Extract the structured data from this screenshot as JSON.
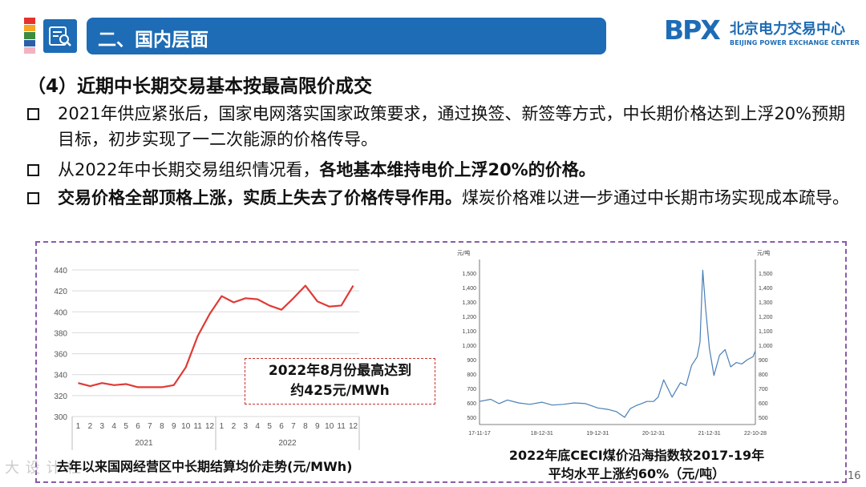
{
  "header": {
    "section_title": "二、国内层面",
    "logo_mark": "BPX",
    "logo_cn": "北京电力交易中心",
    "logo_en": "BEIJING POWER EXCHANGE CENTER",
    "stripe_colors": [
      "#e5322d",
      "#f5a623",
      "#3d8c40",
      "#2b5fa8",
      "#f2b3c0"
    ]
  },
  "subtitle": "（4）近期中长期交易基本按最高限价成交",
  "bullets": [
    {
      "text": "2021年供应紧张后，国家电网落实国家政策要求，通过换签、新签等方式，中长期价格达到上浮20%预期目标，初步实现了一二次能源的价格传导。"
    },
    {
      "pre": "从2022年中长期交易组织情况看，",
      "bold": "各地基本维持电价上浮20%的价格。"
    },
    {
      "bold": "交易价格全部顶格上涨，实质上失去了价格传导作用。",
      "post": "煤炭价格难以进一步通过中长期市场实现成本疏导。"
    }
  ],
  "callout": {
    "line1": "2022年8月份最高达到",
    "line2": "约425元/MWh"
  },
  "caption_left": "去年以来国网经营区中长期结算均价走势(元/MWh)",
  "caption_right": {
    "line1": "2022年底CECI煤价沿海指数较2017-19年",
    "line2": "平均水平上涨约60%（元/吨）"
  },
  "watermark": "大 设  计  社",
  "page_number": "16",
  "chart_data": [
    {
      "type": "line",
      "title": "去年以来国网经营区中长期结算均价走势(元/MWh)",
      "categories": [
        "1",
        "2",
        "3",
        "4",
        "5",
        "6",
        "7",
        "8",
        "9",
        "10",
        "11",
        "12",
        "1",
        "2",
        "3",
        "4",
        "5",
        "6",
        "7",
        "8",
        "9",
        "10",
        "11",
        "12"
      ],
      "group_labels": [
        "2021",
        "2022"
      ],
      "values": [
        332,
        329,
        332,
        330,
        331,
        328,
        328,
        328,
        330,
        347,
        377,
        398,
        415,
        409,
        413,
        412,
        406,
        402,
        413,
        425,
        410,
        405,
        406,
        425
      ],
      "ylim": [
        300,
        440
      ],
      "yticks": [
        300,
        320,
        340,
        360,
        380,
        400,
        420,
        440
      ],
      "color": "#e03a36",
      "grid": true
    },
    {
      "type": "line",
      "title": "2022年底CECI煤价沿海指数较2017-19年平均水平上涨约60%（元/吨）",
      "unit_left": "元/吨",
      "unit_right": "元/吨",
      "x_tick_labels": [
        "17-11-17",
        "18-12-31",
        "19-12-31",
        "20-12-31",
        "21-12-31",
        "22-10-28"
      ],
      "x_tick_positions": [
        0,
        1.118,
        2.118,
        3.118,
        4.118,
        4.942
      ],
      "ylim": [
        450,
        1550
      ],
      "yticks": [
        500,
        600,
        700,
        800,
        900,
        1000,
        1100,
        1200,
        1300,
        1400,
        1500
      ],
      "x": [
        0,
        0.2,
        0.35,
        0.5,
        0.7,
        0.9,
        1.118,
        1.3,
        1.5,
        1.7,
        1.9,
        2.118,
        2.3,
        2.45,
        2.6,
        2.7,
        2.8,
        2.9,
        3.0,
        3.118,
        3.2,
        3.3,
        3.45,
        3.6,
        3.7,
        3.8,
        3.9,
        3.95,
        4.0,
        4.05,
        4.118,
        4.2,
        4.3,
        4.4,
        4.5,
        4.6,
        4.7,
        4.8,
        4.9,
        4.942
      ],
      "values": [
        610,
        625,
        595,
        620,
        600,
        590,
        605,
        585,
        590,
        600,
        595,
        565,
        555,
        540,
        500,
        560,
        580,
        595,
        610,
        610,
        640,
        760,
        640,
        740,
        720,
        860,
        920,
        1020,
        1520,
        1260,
        980,
        790,
        930,
        970,
        850,
        880,
        870,
        900,
        920,
        960
      ],
      "color": "#4a7fb5",
      "grid": false
    }
  ]
}
